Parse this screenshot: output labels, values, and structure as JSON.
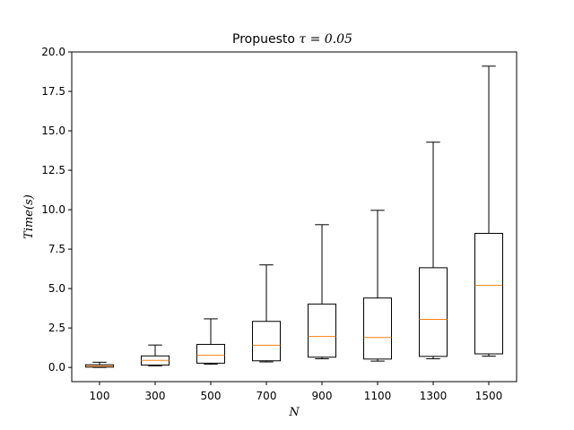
{
  "chart_data": {
    "type": "boxplot",
    "title_text": "Propuesto ",
    "title_math": "τ = 0.05",
    "xlabel": "N",
    "ylabel": "Time(s)",
    "ylim": [
      -0.9,
      20.0
    ],
    "yticks": [
      0.0,
      2.5,
      5.0,
      7.5,
      10.0,
      12.5,
      15.0,
      17.5,
      20.0
    ],
    "ytick_labels": [
      "0.0",
      "2.5",
      "5.0",
      "7.5",
      "10.0",
      "12.5",
      "15.0",
      "17.5",
      "20.0"
    ],
    "categories": [
      "100",
      "300",
      "500",
      "700",
      "900",
      "1100",
      "1300",
      "1500"
    ],
    "boxes": [
      {
        "whislo": 0.0,
        "q1": 0.02,
        "med": 0.08,
        "q3": 0.17,
        "whishi": 0.33
      },
      {
        "whislo": 0.1,
        "q1": 0.15,
        "med": 0.45,
        "q3": 0.73,
        "whishi": 1.42
      },
      {
        "whislo": 0.2,
        "q1": 0.27,
        "med": 0.77,
        "q3": 1.46,
        "whishi": 3.08
      },
      {
        "whislo": 0.35,
        "q1": 0.42,
        "med": 1.41,
        "q3": 2.92,
        "whishi": 6.5
      },
      {
        "whislo": 0.55,
        "q1": 0.65,
        "med": 1.96,
        "q3": 4.02,
        "whishi": 9.05
      },
      {
        "whislo": 0.4,
        "q1": 0.53,
        "med": 1.9,
        "q3": 4.4,
        "whishi": 9.96
      },
      {
        "whislo": 0.55,
        "q1": 0.7,
        "med": 3.05,
        "q3": 6.32,
        "whishi": 14.28
      },
      {
        "whislo": 0.72,
        "q1": 0.86,
        "med": 5.2,
        "q3": 8.5,
        "whishi": 19.1
      }
    ],
    "colors": {
      "box": "#000000",
      "median": "#ff7f0e",
      "background": "#ffffff"
    }
  }
}
